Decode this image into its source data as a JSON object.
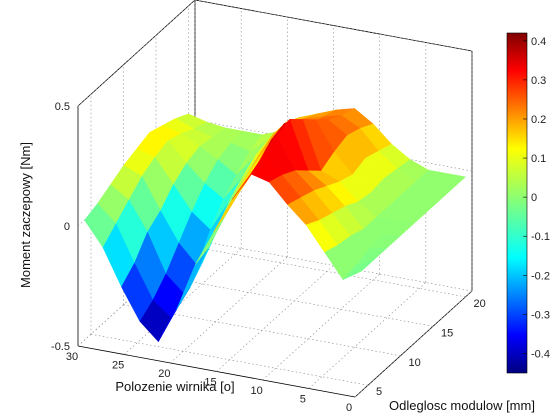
{
  "chart_data": {
    "type": "surface",
    "title": "",
    "xlabel": "Polozenie wirnika [o]",
    "ylabel": "Odleglosc modulow [mm]",
    "zlabel": "Moment zaczepowy [Nm]",
    "x_ticks": [
      "30",
      "25",
      "20",
      "15",
      "10",
      "5",
      "0"
    ],
    "y_ticks": [
      "5",
      "10",
      "15",
      "20"
    ],
    "z_ticks": [
      "-0.5",
      "0",
      "0.5"
    ],
    "xlim": [
      0,
      30
    ],
    "ylim": [
      3,
      21
    ],
    "zlim": [
      -0.5,
      0.5
    ],
    "colorbar": {
      "colormap": "jet",
      "ticks": [
        "0.4",
        "0.3",
        "0.2",
        "0.1",
        "0",
        "-0.1",
        "-0.2",
        "-0.3",
        "-0.4"
      ],
      "range": [
        -0.45,
        0.42
      ]
    },
    "rows_y": [
      4,
      6,
      8,
      10,
      12,
      14,
      16,
      18,
      20
    ],
    "cols_x": [
      30,
      28,
      26,
      24,
      22,
      20,
      18,
      16,
      14,
      12,
      10,
      8,
      6,
      4,
      2,
      0
    ],
    "z": [
      [
        0.0,
        -0.1,
        -0.25,
        -0.38,
        -0.45,
        -0.3,
        -0.1,
        0.05,
        0.2,
        0.32,
        0.3,
        0.22,
        0.15,
        0.05,
        -0.05,
        0.0
      ],
      [
        0.02,
        -0.05,
        -0.2,
        -0.34,
        -0.4,
        -0.26,
        -0.08,
        0.08,
        0.22,
        0.35,
        0.28,
        0.2,
        0.12,
        0.03,
        -0.04,
        0.0
      ],
      [
        0.05,
        0.0,
        -0.12,
        -0.28,
        -0.35,
        -0.2,
        -0.02,
        0.12,
        0.25,
        0.38,
        0.25,
        0.18,
        0.1,
        0.02,
        -0.02,
        0.0
      ],
      [
        0.08,
        0.05,
        -0.08,
        -0.2,
        -0.28,
        -0.12,
        0.04,
        0.15,
        0.3,
        0.4,
        0.2,
        0.15,
        0.08,
        0.0,
        -0.01,
        0.0
      ],
      [
        0.1,
        0.08,
        -0.02,
        -0.12,
        -0.18,
        -0.05,
        0.08,
        0.2,
        0.32,
        0.35,
        0.15,
        0.12,
        0.05,
        0.0,
        0.0,
        0.0
      ],
      [
        0.12,
        0.1,
        0.02,
        -0.05,
        -0.1,
        0.0,
        0.12,
        0.22,
        0.28,
        0.3,
        0.18,
        0.1,
        0.04,
        0.0,
        0.0,
        0.0
      ],
      [
        0.1,
        0.08,
        0.04,
        0.0,
        -0.05,
        0.04,
        0.15,
        0.2,
        0.22,
        0.25,
        0.2,
        0.12,
        0.05,
        0.0,
        0.0,
        0.0
      ],
      [
        0.08,
        0.05,
        0.03,
        0.02,
        0.0,
        0.06,
        0.15,
        0.18,
        0.2,
        0.22,
        0.18,
        0.1,
        0.04,
        0.0,
        0.0,
        0.0
      ],
      [
        0.05,
        0.03,
        0.02,
        0.02,
        0.02,
        0.05,
        0.12,
        0.15,
        0.18,
        0.2,
        0.15,
        0.08,
        0.03,
        0.0,
        0.0,
        0.0
      ]
    ]
  }
}
